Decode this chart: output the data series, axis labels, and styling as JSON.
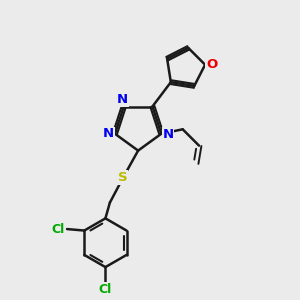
{
  "background_color": "#ebebeb",
  "bond_color": "#1a1a1a",
  "N_color": "#0000ee",
  "O_color": "#ee0000",
  "S_color": "#bbbb00",
  "Cl_color": "#00aa00",
  "label_N": "N",
  "label_O": "O",
  "label_S": "S",
  "label_Cl": "Cl",
  "figsize": [
    3.0,
    3.0
  ],
  "dpi": 100
}
